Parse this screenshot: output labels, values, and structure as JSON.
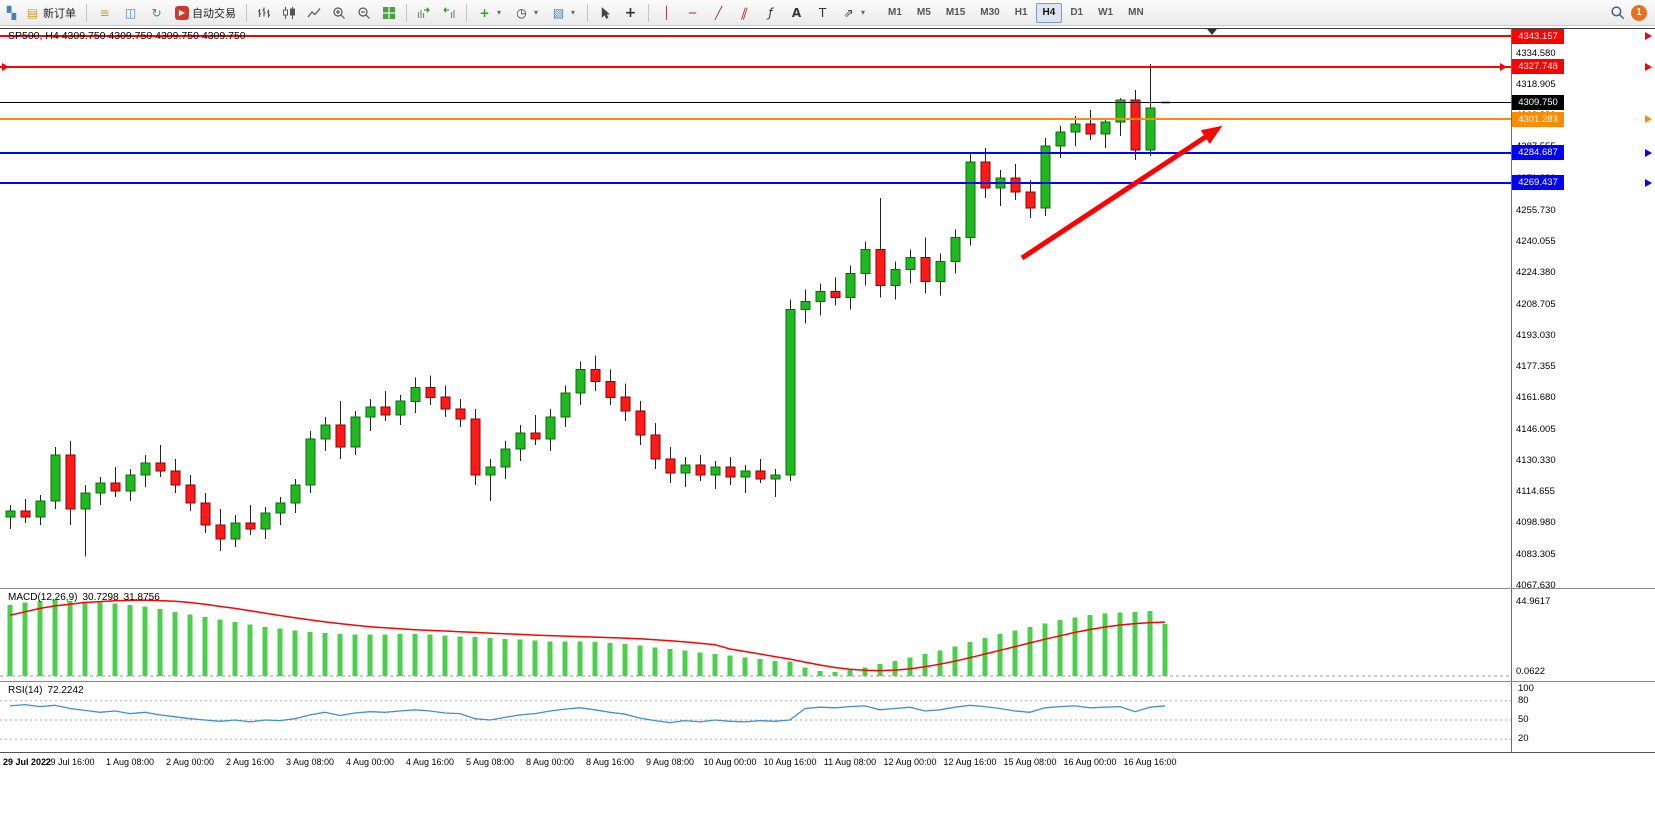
{
  "toolbar": {
    "new_order_label": "新订单",
    "autotrading_label": "自动交易",
    "timeframes": [
      "M1",
      "M5",
      "M15",
      "M30",
      "H1",
      "H4",
      "D1",
      "W1",
      "MN"
    ],
    "active_timeframe": "H4",
    "notification_count": "1"
  },
  "icons": {
    "app_chart": "▚",
    "new_order": "▤",
    "charts_stack": "≡",
    "market_window": "◫",
    "refresh": "↻",
    "autotrading_play": "▶",
    "new_chart_plus": "+",
    "periods_clock": "◷",
    "templates": "▧",
    "caret": "▾",
    "crosshair": "+",
    "vertical_line": "│",
    "horizontal_line": "─",
    "trend_line": "╱",
    "channel": "∥",
    "fibonacci": "ƒ",
    "text": "A",
    "text_label": "T",
    "arrows_tool": "⇗"
  },
  "chart_data": {
    "type": "candlestick",
    "symbol": "SP500",
    "period": "H4",
    "title": "SP500, H4 4309.750 4309.750 4309.750 4309.750",
    "colors": {
      "bull": "#1fb81f",
      "bear": "#ff1a1a",
      "wick": "#222222",
      "macd_histogram": "#4ccf4c",
      "macd_signal": "#ff0000",
      "rsi_line": "#3f8fd6",
      "annotation_arrow": "#ff0000"
    },
    "price_axis_labels": [
      "4334.580",
      "4318.905",
      "4303.230",
      "4287.555",
      "4271.880",
      "4255.730",
      "4240.055",
      "4224.380",
      "4208.705",
      "4193.030",
      "4177.355",
      "4161.680",
      "4146.005",
      "4130.330",
      "4114.655",
      "4098.980",
      "4083.305",
      "4067.630"
    ],
    "time_axis_labels": [
      "29 Jul 2022",
      "29 Jul 16:00",
      "1 Aug 08:00",
      "2 Aug 00:00",
      "2 Aug 16:00",
      "3 Aug 08:00",
      "4 Aug 00:00",
      "4 Aug 16:00",
      "5 Aug 08:00",
      "8 Aug 00:00",
      "8 Aug 16:00",
      "9 Aug 08:00",
      "10 Aug 00:00",
      "10 Aug 16:00",
      "11 Aug 08:00",
      "12 Aug 00:00",
      "12 Aug 16:00",
      "15 Aug 08:00",
      "16 Aug 00:00",
      "16 Aug 16:00"
    ],
    "horizontal_lines": [
      {
        "price": 4343.157,
        "label": "4343.157",
        "color": "#ff0000",
        "type": "resistance-line",
        "axis_arrow": true,
        "edge_arrows": false
      },
      {
        "price": 4327.748,
        "label": "4327.748",
        "color": "#ff0000",
        "type": "resistance-line",
        "axis_arrow": true,
        "edge_arrows": true
      },
      {
        "price": 4309.75,
        "label": "4309.750",
        "color": "#000000",
        "type": "current-price",
        "axis_arrow": false,
        "edge_arrows": false
      },
      {
        "price": 4301.283,
        "label": "4301.283",
        "color": "#ff8c00",
        "type": "pivot-line",
        "axis_arrow": true,
        "edge_arrows": false
      },
      {
        "price": 4284.687,
        "label": "4284.687",
        "color": "#0000ff",
        "type": "support-line",
        "axis_arrow": true,
        "edge_arrows": false
      },
      {
        "price": 4269.437,
        "label": "4269.437",
        "color": "#0000ff",
        "type": "support-line",
        "axis_arrow": true,
        "edge_arrows": false
      }
    ],
    "candles": [
      [
        4102,
        4108,
        4096,
        4105
      ],
      [
        4105,
        4111,
        4099,
        4102
      ],
      [
        4102,
        4113,
        4098,
        4110
      ],
      [
        4110,
        4137,
        4106,
        4133
      ],
      [
        4133,
        4140,
        4098,
        4106
      ],
      [
        4106,
        4118,
        4082,
        4114
      ],
      [
        4114,
        4122,
        4108,
        4119
      ],
      [
        4119,
        4127,
        4112,
        4115
      ],
      [
        4115,
        4126,
        4110,
        4123
      ],
      [
        4123,
        4133,
        4117,
        4129
      ],
      [
        4129,
        4138,
        4122,
        4125
      ],
      [
        4125,
        4131,
        4114,
        4118
      ],
      [
        4118,
        4123,
        4105,
        4109
      ],
      [
        4109,
        4114,
        4094,
        4098
      ],
      [
        4098,
        4106,
        4085,
        4091
      ],
      [
        4091,
        4103,
        4087,
        4099
      ],
      [
        4099,
        4108,
        4093,
        4096
      ],
      [
        4096,
        4107,
        4091,
        4104
      ],
      [
        4104,
        4112,
        4098,
        4109
      ],
      [
        4109,
        4121,
        4104,
        4118
      ],
      [
        4118,
        4145,
        4114,
        4141
      ],
      [
        4141,
        4152,
        4135,
        4148
      ],
      [
        4148,
        4160,
        4131,
        4137
      ],
      [
        4137,
        4155,
        4133,
        4152
      ],
      [
        4152,
        4161,
        4145,
        4157
      ],
      [
        4157,
        4165,
        4150,
        4153
      ],
      [
        4153,
        4163,
        4148,
        4160
      ],
      [
        4160,
        4172,
        4154,
        4167
      ],
      [
        4167,
        4173,
        4158,
        4162
      ],
      [
        4162,
        4168,
        4152,
        4156
      ],
      [
        4156,
        4161,
        4147,
        4151
      ],
      [
        4151,
        4156,
        4118,
        4123
      ],
      [
        4123,
        4131,
        4110,
        4127
      ],
      [
        4127,
        4140,
        4121,
        4136
      ],
      [
        4136,
        4148,
        4130,
        4144
      ],
      [
        4144,
        4153,
        4138,
        4141
      ],
      [
        4141,
        4156,
        4135,
        4152
      ],
      [
        4152,
        4168,
        4147,
        4164
      ],
      [
        4164,
        4180,
        4158,
        4176
      ],
      [
        4176,
        4183,
        4165,
        4170
      ],
      [
        4170,
        4176,
        4158,
        4162
      ],
      [
        4162,
        4169,
        4150,
        4155
      ],
      [
        4155,
        4160,
        4138,
        4143
      ],
      [
        4143,
        4149,
        4126,
        4131
      ],
      [
        4131,
        4137,
        4119,
        4124
      ],
      [
        4124,
        4132,
        4117,
        4128
      ],
      [
        4128,
        4133,
        4120,
        4123
      ],
      [
        4123,
        4130,
        4116,
        4127
      ],
      [
        4127,
        4132,
        4118,
        4122
      ],
      [
        4122,
        4128,
        4114,
        4125
      ],
      [
        4125,
        4131,
        4119,
        4121
      ],
      [
        4121,
        4126,
        4112,
        4123
      ],
      [
        4123,
        4211,
        4120,
        4206
      ],
      [
        4206,
        4216,
        4199,
        4210
      ],
      [
        4210,
        4219,
        4203,
        4215
      ],
      [
        4215,
        4222,
        4208,
        4212
      ],
      [
        4212,
        4228,
        4206,
        4224
      ],
      [
        4224,
        4240,
        4218,
        4236
      ],
      [
        4236,
        4262,
        4212,
        4218
      ],
      [
        4218,
        4230,
        4211,
        4226
      ],
      [
        4226,
        4236,
        4219,
        4232
      ],
      [
        4232,
        4242,
        4214,
        4220
      ],
      [
        4220,
        4234,
        4213,
        4230
      ],
      [
        4230,
        4246,
        4224,
        4242
      ],
      [
        4242,
        4284,
        4238,
        4280
      ],
      [
        4280,
        4287,
        4262,
        4267
      ],
      [
        4267,
        4276,
        4258,
        4272
      ],
      [
        4272,
        4279,
        4261,
        4265
      ],
      [
        4265,
        4271,
        4252,
        4257
      ],
      [
        4257,
        4292,
        4253,
        4288
      ],
      [
        4288,
        4298,
        4282,
        4295
      ],
      [
        4295,
        4303,
        4288,
        4299
      ],
      [
        4299,
        4306,
        4291,
        4294
      ],
      [
        4294,
        4302,
        4287,
        4300
      ],
      [
        4300,
        4312,
        4293,
        4311
      ],
      [
        4311,
        4316,
        4281,
        4286
      ],
      [
        4286,
        4329,
        4283,
        4307
      ],
      [
        4309.75,
        4309.75,
        4309.75,
        4309.75
      ]
    ],
    "macd": {
      "label": "MACD(12,26,9)",
      "value_main": "30.7298",
      "value_signal": "31.8756",
      "axis_top_label": "44.9617",
      "axis_bottom_label": "0.0622",
      "histogram": [
        42,
        43.5,
        44.5,
        45,
        44.5,
        44,
        43.5,
        43,
        42,
        41,
        39.5,
        38,
        36.5,
        35,
        33.5,
        32,
        30.5,
        29,
        28,
        27,
        26,
        25.5,
        25,
        24.5,
        24.5,
        24.5,
        25,
        25,
        24.5,
        24,
        23.5,
        23,
        22.5,
        22,
        21.5,
        21,
        20.5,
        20.5,
        20.5,
        20,
        19.5,
        19,
        18,
        17,
        16,
        15,
        14,
        13,
        12,
        11,
        10,
        9,
        8.5,
        5,
        3,
        2.5,
        3.5,
        5,
        7,
        9,
        11,
        13,
        15,
        17.5,
        20,
        22.5,
        25,
        27,
        29,
        31,
        33,
        34.5,
        36,
        37,
        37.5,
        38,
        38.5,
        30.7
      ],
      "signal": [
        36,
        38,
        40,
        41.5,
        42.5,
        43.5,
        44,
        44.5,
        44.8,
        44.9,
        44.6,
        44.2,
        43.5,
        42.5,
        41.2,
        40,
        38.6,
        37.2,
        35.8,
        34.5,
        33.2,
        32,
        31,
        30,
        29.2,
        28.5,
        27.9,
        27.4,
        27,
        26.6,
        26.2,
        25.8,
        25.4,
        25,
        24.6,
        24.2,
        23.9,
        23.6,
        23.3,
        23,
        22.7,
        22.4,
        22,
        21.5,
        20.9,
        20.2,
        19.4,
        18.5,
        16,
        14.5,
        13,
        11.5,
        10,
        8.2,
        6.5,
        5,
        4,
        3.4,
        3.2,
        3.5,
        4.2,
        5.5,
        7,
        8.8,
        10.8,
        13,
        15.2,
        17.4,
        19.6,
        21.8,
        23.8,
        25.8,
        27.5,
        29,
        30.2,
        31,
        31.6,
        31.88
      ]
    },
    "rsi": {
      "label": "RSI(14)",
      "value": "72.2242",
      "axis_labels": [
        "100",
        "80",
        "50",
        "20"
      ],
      "levels": [
        80,
        50,
        20
      ],
      "values": [
        72,
        74,
        71,
        73,
        68,
        65,
        62,
        64,
        60,
        62,
        58,
        55,
        52,
        50,
        48,
        50,
        47,
        50,
        49,
        52,
        58,
        62,
        57,
        61,
        63,
        62,
        64,
        66,
        64,
        61,
        60,
        52,
        50,
        54,
        58,
        60,
        64,
        67,
        69,
        66,
        62,
        59,
        53,
        49,
        46,
        49,
        47,
        50,
        48,
        47,
        49,
        48,
        50,
        68,
        70,
        69,
        71,
        72,
        66,
        68,
        70,
        64,
        66,
        70,
        73,
        71,
        68,
        64,
        62,
        69,
        71,
        72,
        69,
        70,
        71,
        63,
        70,
        72.2
      ]
    },
    "annotation": {
      "type": "trend-arrow",
      "color": "#ff0000"
    }
  }
}
